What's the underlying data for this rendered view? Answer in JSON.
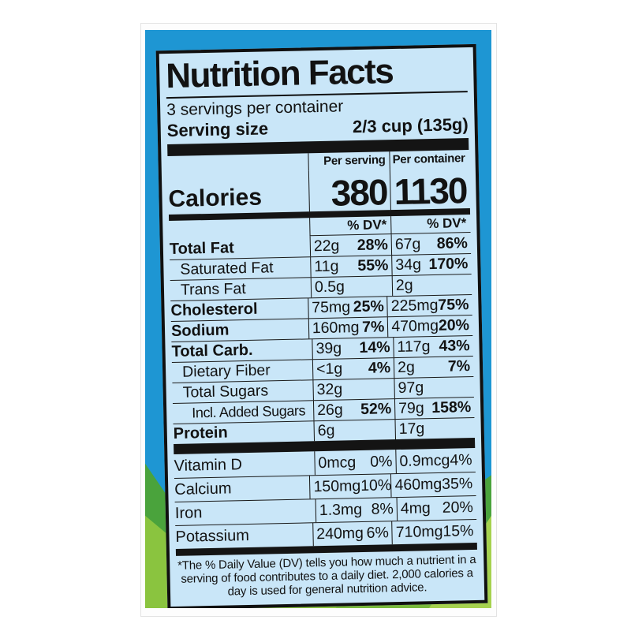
{
  "label": {
    "title": "Nutrition Facts",
    "servings_per_container": "3 servings per container",
    "serving_size": {
      "name": "Serving size",
      "value": "2/3 cup  (135g)"
    },
    "calories": {
      "name": "Calories",
      "per_serving_header": "Per serving",
      "per_container_header": "Per container",
      "per_serving_value": "380",
      "per_container_value": "1130",
      "dv_header": "% DV*"
    },
    "rows": [
      {
        "name": "Total Fat",
        "style": "main",
        "cells": [
          {
            "amount": "22g",
            "dv": "28%"
          },
          {
            "amount": "67g",
            "dv": "86%"
          }
        ]
      },
      {
        "name": "Saturated Fat",
        "style": "sub",
        "cells": [
          {
            "amount": "11g",
            "dv": "55%"
          },
          {
            "amount": "34g",
            "dv": "170%"
          }
        ]
      },
      {
        "name": "Trans Fat",
        "style": "sub",
        "cells": [
          {
            "amount": "0.5g",
            "dv": ""
          },
          {
            "amount": "2g",
            "dv": ""
          }
        ]
      },
      {
        "name": "Cholesterol",
        "style": "main",
        "cells": [
          {
            "amount": "75mg",
            "dv": "25%"
          },
          {
            "amount": "225mg",
            "dv": "75%"
          }
        ]
      },
      {
        "name": "Sodium",
        "style": "main",
        "cells": [
          {
            "amount": "160mg",
            "dv": "7%"
          },
          {
            "amount": "470mg",
            "dv": "20%"
          }
        ]
      },
      {
        "name": "Total Carb.",
        "style": "main",
        "cells": [
          {
            "amount": "39g",
            "dv": "14%"
          },
          {
            "amount": "117g",
            "dv": "43%"
          }
        ]
      },
      {
        "name": "Dietary Fiber",
        "style": "sub",
        "cells": [
          {
            "amount": "<1g",
            "dv": "4%"
          },
          {
            "amount": "2g",
            "dv": "7%"
          }
        ]
      },
      {
        "name": "Total Sugars",
        "style": "sub",
        "cells": [
          {
            "amount": "32g",
            "dv": ""
          },
          {
            "amount": "97g",
            "dv": ""
          }
        ]
      },
      {
        "name": "Incl. Added Sugars",
        "style": "sub2",
        "cells": [
          {
            "amount": "26g",
            "dv": "52%"
          },
          {
            "amount": "79g",
            "dv": "158%"
          }
        ]
      },
      {
        "name": "Protein",
        "style": "main",
        "cells": [
          {
            "amount": "6g",
            "dv": ""
          },
          {
            "amount": "17g",
            "dv": ""
          }
        ]
      }
    ],
    "vitamins": [
      {
        "name": "Vitamin D",
        "cells": [
          {
            "amount": "0mcg",
            "dv": "0%"
          },
          {
            "amount": "0.9mcg",
            "dv": "4%"
          }
        ]
      },
      {
        "name": "Calcium",
        "cells": [
          {
            "amount": "150mg",
            "dv": "10%"
          },
          {
            "amount": "460mg",
            "dv": "35%"
          }
        ]
      },
      {
        "name": "Iron",
        "cells": [
          {
            "amount": "1.3mg",
            "dv": "8%"
          },
          {
            "amount": "4mg",
            "dv": "20%"
          }
        ]
      },
      {
        "name": "Potassium",
        "cells": [
          {
            "amount": "240mg",
            "dv": "6%"
          },
          {
            "amount": "710mg",
            "dv": "15%"
          }
        ]
      }
    ],
    "footnote": "*The % Daily Value (DV) tells you how much a nutrient in a serving of food contributes to a daily diet. 2,000 calories a day is used for general nutrition advice."
  },
  "colors": {
    "sky_blue": "#1e96d3",
    "label_background": "#c9e6f8",
    "hill_dark_green": "#4aa33c",
    "hill_light_green": "#8ac43f",
    "hill_accent_dark": "#79b93c",
    "hill_accent_light": "#a6d24f",
    "ink": "#101010"
  }
}
